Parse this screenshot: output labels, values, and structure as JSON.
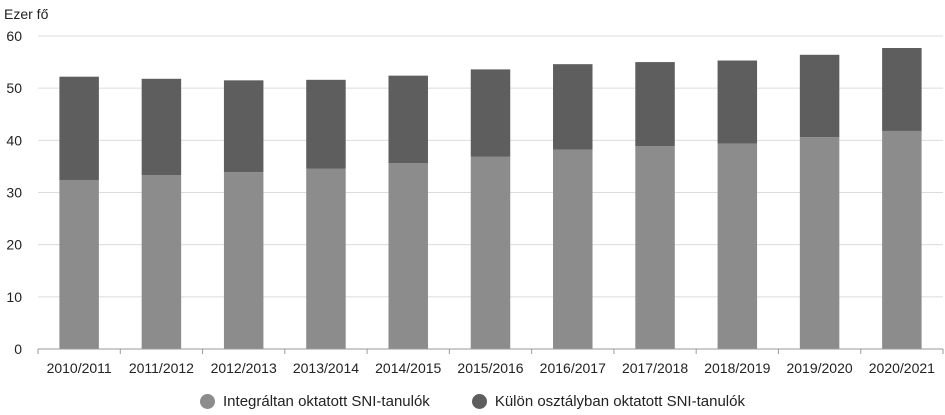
{
  "chart_data": {
    "type": "bar",
    "stacked": true,
    "ylabel": "Ezer fő",
    "ylim": [
      0,
      60
    ],
    "yticks": [
      0,
      10,
      20,
      30,
      40,
      50,
      60
    ],
    "grid": true,
    "legend_position": "bottom",
    "categories": [
      "2010/2011",
      "2011/2012",
      "2012/2013",
      "2013/2014",
      "2014/2015",
      "2015/2016",
      "2016/2017",
      "2017/2018",
      "2018/2019",
      "2019/2020",
      "2020/2021"
    ],
    "series": [
      {
        "name": "Integráltan oktatott SNI-tanulók",
        "color": "#8c8c8c",
        "values": [
          32.4,
          33.3,
          33.9,
          34.6,
          35.6,
          36.9,
          38.2,
          38.9,
          39.4,
          40.6,
          41.8
        ]
      },
      {
        "name": "Külön osztályban oktatott SNI-tanulók",
        "color": "#5e5e5e",
        "values": [
          19.8,
          18.5,
          17.6,
          17.0,
          16.8,
          16.7,
          16.4,
          16.1,
          15.9,
          15.8,
          15.9
        ]
      }
    ]
  }
}
